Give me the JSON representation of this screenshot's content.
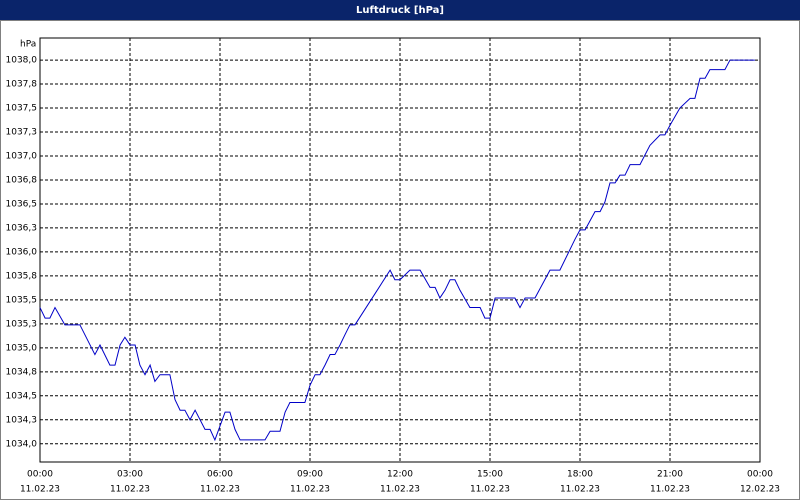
{
  "chart_data": {
    "type": "line",
    "title": "Luftdruck [hPa]",
    "y_label": "hPa",
    "x": [
      0,
      0.17,
      0.33,
      0.5,
      0.83,
      1.33,
      1.83,
      2.0,
      2.33,
      2.5,
      2.67,
      2.83,
      3.0,
      3.17,
      3.33,
      3.5,
      3.67,
      3.83,
      4.0,
      4.33,
      4.5,
      4.67,
      4.83,
      5.0,
      5.17,
      5.5,
      5.67,
      5.83,
      6.17,
      6.33,
      6.5,
      6.67,
      7.5,
      7.67,
      8.0,
      8.17,
      8.33,
      8.83,
      9.0,
      9.17,
      9.33,
      9.5,
      9.67,
      9.83,
      10.0,
      10.17,
      10.33,
      10.5,
      11.67,
      11.83,
      12.0,
      12.33,
      12.67,
      13.0,
      13.17,
      13.33,
      13.5,
      13.67,
      13.83,
      14.0,
      14.33,
      14.67,
      14.83,
      15.0,
      15.17,
      15.83,
      16.0,
      16.17,
      16.5,
      17.0,
      17.33,
      17.83,
      18.0,
      18.17,
      18.5,
      18.67,
      18.83,
      19.0,
      19.17,
      19.33,
      19.5,
      19.67,
      20.0,
      20.33,
      20.67,
      20.83,
      21.0,
      21.33,
      21.67,
      21.83,
      22.0,
      22.17,
      22.33,
      22.83,
      23.0,
      23.83
    ],
    "series": [
      {
        "color": "#0000c8",
        "values": [
          1035.42,
          1035.31,
          1035.31,
          1035.42,
          1035.24,
          1035.24,
          1034.93,
          1035.03,
          1034.82,
          1034.82,
          1035.03,
          1035.11,
          1035.03,
          1035.03,
          1034.82,
          1034.72,
          1034.82,
          1034.65,
          1034.72,
          1034.72,
          1034.46,
          1034.35,
          1034.35,
          1034.25,
          1034.35,
          1034.15,
          1034.15,
          1034.04,
          1034.33,
          1034.33,
          1034.15,
          1034.04,
          1034.04,
          1034.13,
          1034.13,
          1034.33,
          1034.43,
          1034.43,
          1034.61,
          1034.72,
          1034.72,
          1034.82,
          1034.93,
          1034.93,
          1035.03,
          1035.14,
          1035.24,
          1035.24,
          1035.81,
          1035.71,
          1035.71,
          1035.81,
          1035.81,
          1035.63,
          1035.63,
          1035.52,
          1035.6,
          1035.71,
          1035.71,
          1035.6,
          1035.42,
          1035.42,
          1035.31,
          1035.31,
          1035.52,
          1035.52,
          1035.42,
          1035.52,
          1035.52,
          1035.81,
          1035.81,
          1036.13,
          1036.23,
          1036.23,
          1036.42,
          1036.42,
          1036.52,
          1036.72,
          1036.72,
          1036.8,
          1036.8,
          1036.91,
          1036.91,
          1037.11,
          1037.22,
          1037.22,
          1037.32,
          1037.5,
          1037.6,
          1037.6,
          1037.81,
          1037.81,
          1037.9,
          1037.9,
          1038.0,
          1038.0
        ]
      }
    ],
    "xlim": [
      0,
      24
    ],
    "xticks": [
      {
        "value": 0,
        "label": "00:00"
      },
      {
        "value": 3,
        "label": "03:00"
      },
      {
        "value": 6,
        "label": "06:00"
      },
      {
        "value": 9,
        "label": "09:00"
      },
      {
        "value": 12,
        "label": "12:00"
      },
      {
        "value": 15,
        "label": "15:00"
      },
      {
        "value": 18,
        "label": "18:00"
      },
      {
        "value": 21,
        "label": "21:00"
      },
      {
        "value": 24,
        "label": "00:00"
      }
    ],
    "xtick_dates": [
      "11.02.23",
      "11.02.23",
      "11.02.23",
      "11.02.23",
      "11.02.23",
      "11.02.23",
      "11.02.23",
      "11.02.23",
      "12.02.23"
    ],
    "ylim": [
      1033.81,
      1038.23
    ],
    "yticks": [
      {
        "value": 1034.0,
        "label": "1034,0"
      },
      {
        "value": 1034.25,
        "label": "1034,3"
      },
      {
        "value": 1034.5,
        "label": "1034,5"
      },
      {
        "value": 1034.75,
        "label": "1034,8"
      },
      {
        "value": 1035.0,
        "label": "1035,0"
      },
      {
        "value": 1035.25,
        "label": "1035,3"
      },
      {
        "value": 1035.5,
        "label": "1035,5"
      },
      {
        "value": 1035.75,
        "label": "1035,8"
      },
      {
        "value": 1036.0,
        "label": "1036,0"
      },
      {
        "value": 1036.25,
        "label": "1036,3"
      },
      {
        "value": 1036.5,
        "label": "1036,5"
      },
      {
        "value": 1036.75,
        "label": "1036,8"
      },
      {
        "value": 1037.0,
        "label": "1037,0"
      },
      {
        "value": 1037.25,
        "label": "1037,3"
      },
      {
        "value": 1037.5,
        "label": "1037,5"
      },
      {
        "value": 1037.75,
        "label": "1037,8"
      },
      {
        "value": 1038.0,
        "label": "1038,0"
      }
    ],
    "grid": true
  }
}
